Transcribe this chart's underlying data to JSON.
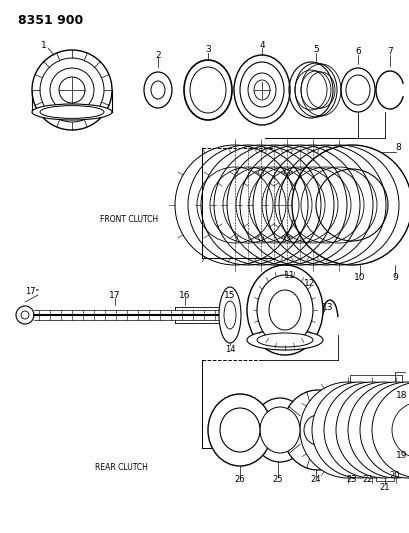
{
  "title": "8351 900",
  "bg": "#ffffff",
  "lc": "#000000",
  "label_front": "FRONT CLUTCH",
  "label_rear": "REAR CLUTCH",
  "figsize": [
    4.1,
    5.33
  ],
  "dpi": 100
}
